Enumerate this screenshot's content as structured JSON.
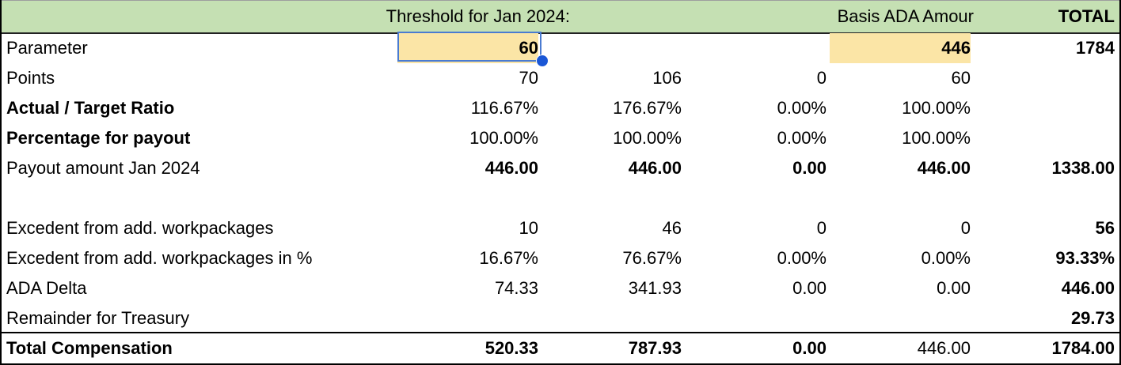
{
  "header": {
    "threshold_label": "Threshold for Jan 2024:",
    "basis_label": "Basis ADA Amour",
    "total_label": "TOTAL"
  },
  "rows": {
    "parameter": {
      "label": "Parameter",
      "c1": "60",
      "c4": "446",
      "c5": "1784"
    },
    "points": {
      "label": "Points",
      "c1": "70",
      "c2": "106",
      "c3": "0",
      "c4": "60",
      "c5": ""
    },
    "ratio": {
      "label": "Actual / Target Ratio",
      "c1": "116.67%",
      "c2": "176.67%",
      "c3": "0.00%",
      "c4": "100.00%",
      "c5": ""
    },
    "percentage": {
      "label": "Percentage for payout",
      "c1": "100.00%",
      "c2": "100.00%",
      "c3": "0.00%",
      "c4": "100.00%",
      "c5": ""
    },
    "payout": {
      "label": "Payout amount Jan 2024",
      "c1": "446.00",
      "c2": "446.00",
      "c3": "0.00",
      "c4": "446.00",
      "c5": "1338.00"
    },
    "excedent": {
      "label": "Excedent from add. workpackages",
      "c1": "10",
      "c2": "46",
      "c3": "0",
      "c4": "0",
      "c5": "56"
    },
    "excedent_pct": {
      "label": "Excedent from add. workpackages in %",
      "c1": "16.67%",
      "c2": "76.67%",
      "c3": "0.00%",
      "c4": "0.00%",
      "c5": "93.33%"
    },
    "ada_delta": {
      "label": "ADA Delta",
      "c1": "74.33",
      "c2": "341.93",
      "c3": "0.00",
      "c4": "0.00",
      "c5": "446.00"
    },
    "remainder": {
      "label": "Remainder for Treasury",
      "c5": "29.73"
    },
    "total_comp": {
      "label": "Total Compensation",
      "c1": "520.33",
      "c2": "787.93",
      "c3": "0.00",
      "c4": "446.00",
      "c5": "1784.00"
    }
  },
  "colors": {
    "header_bg": "#c5e0b3",
    "highlight_bg": "#fbe5a6",
    "selection_border": "#4a7bd1"
  }
}
